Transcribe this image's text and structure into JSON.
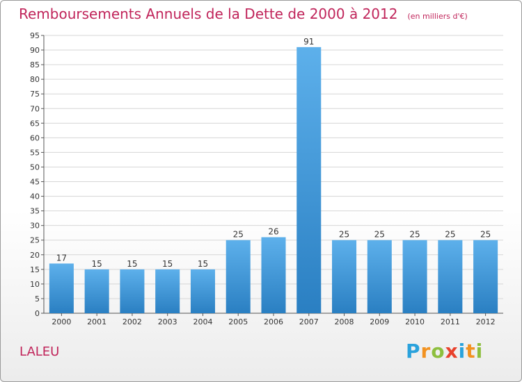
{
  "header": {
    "title": "Remboursements Annuels de la Dette de 2000 à 2012",
    "subtitle": "(en milliers d'€)"
  },
  "footer": {
    "place": "LALEU",
    "logo": {
      "letters": [
        "P",
        "r",
        "o",
        "x",
        "i",
        "t",
        "i"
      ],
      "colors": [
        "#2aa2dc",
        "#f29220",
        "#8dbf3e",
        "#e8412c",
        "#2aa2dc",
        "#f29220",
        "#8dbf3e"
      ]
    }
  },
  "chart_data": {
    "type": "bar",
    "title": "Remboursements Annuels de la Dette de 2000 à 2012",
    "categories": [
      "2000",
      "2001",
      "2002",
      "2003",
      "2004",
      "2005",
      "2006",
      "2007",
      "2008",
      "2009",
      "2010",
      "2011",
      "2012"
    ],
    "values": [
      17,
      15,
      15,
      15,
      15,
      25,
      26,
      91,
      25,
      25,
      25,
      25,
      25
    ],
    "data_labels": [
      "17",
      "15",
      "15",
      "15",
      "15",
      "25",
      "26",
      "91",
      "25",
      "25",
      "25",
      "25",
      "25"
    ],
    "ylim": [
      0,
      95
    ],
    "yticks": [
      0,
      5,
      10,
      15,
      20,
      25,
      30,
      35,
      40,
      45,
      50,
      55,
      60,
      65,
      70,
      75,
      80,
      85,
      90,
      95
    ],
    "grid": true,
    "legend": "none",
    "bar_color": "#3a93d6"
  }
}
